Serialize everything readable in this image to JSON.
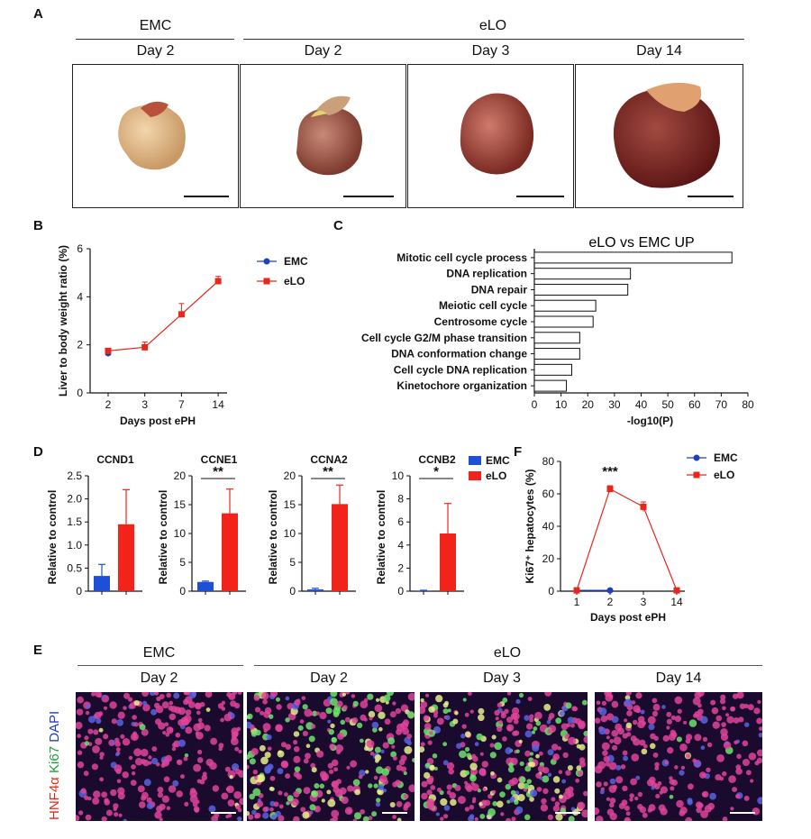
{
  "panels": {
    "A": "A",
    "B": "B",
    "C": "C",
    "D": "D",
    "E": "E",
    "F": "F"
  },
  "panelA": {
    "groups": [
      "EMC",
      "eLO"
    ],
    "columns": [
      "Day 2",
      "Day 2",
      "Day 3",
      "Day 14"
    ]
  },
  "panelE": {
    "groups": [
      "EMC",
      "eLO"
    ],
    "columns": [
      "Day 2",
      "Day 2",
      "Day 3",
      "Day 14"
    ],
    "stain": {
      "hnf": "HNF4α",
      "ki": "Ki67",
      "dapi": "DAPI"
    }
  },
  "chart_data": [
    {
      "id": "B",
      "type": "line",
      "categories": [
        "2",
        "3",
        "7",
        "14"
      ],
      "xlabel": "Days post ePH",
      "ylabel": "Liver to body weight ratio (%)",
      "ylim": [
        0,
        6
      ],
      "yticks": [
        "0",
        "2",
        "4",
        "6"
      ],
      "legend": "top-right",
      "series": [
        {
          "name": "EMC",
          "color": "#1f3fbf",
          "values": [
            1.65,
            null,
            null,
            null
          ],
          "err": [
            0.05,
            null,
            null,
            null
          ]
        },
        {
          "name": "eLO",
          "color": "#e8261b",
          "values": [
            1.75,
            1.9,
            3.27,
            4.65
          ],
          "err": [
            0.07,
            0.22,
            0.45,
            0.2
          ]
        }
      ]
    },
    {
      "id": "C",
      "type": "bar",
      "orientation": "horizontal",
      "title": "eLO vs EMC UP",
      "xlabel": "-log10(P)",
      "xlim": [
        0,
        80
      ],
      "xticks": [
        "0",
        "10",
        "20",
        "30",
        "40",
        "50",
        "60",
        "70",
        "80"
      ],
      "categories": [
        "Mitotic cell cycle process",
        "DNA replication",
        "DNA repair",
        "Meiotic cell cycle",
        "Centrosome cycle",
        "Cell cycle G2/M phase transition",
        "DNA conformation change",
        "Cell cycle DNA replication",
        "Kinetochore organization"
      ],
      "values": [
        74,
        36,
        35,
        23,
        22,
        17,
        17,
        14,
        12
      ]
    },
    {
      "id": "D1",
      "type": "bar",
      "title": "CCND1",
      "ylabel": "Relative to control",
      "ylim": [
        0,
        2.5
      ],
      "yticks": [
        "0",
        "0.5",
        "1.0",
        "1.5",
        "2.0",
        "2.5"
      ],
      "categories": [
        "EMC",
        "eLO"
      ],
      "values": [
        0.33,
        1.45
      ],
      "err": [
        0.25,
        0.75
      ],
      "colors": [
        "#1f4fd6",
        "#f2231b"
      ],
      "sig": ""
    },
    {
      "id": "D2",
      "type": "bar",
      "title": "CCNE1",
      "ylabel": "Relative to control",
      "ylim": [
        0,
        20
      ],
      "yticks": [
        "0",
        "5",
        "10",
        "15",
        "20"
      ],
      "categories": [
        "EMC",
        "eLO"
      ],
      "values": [
        1.6,
        13.5
      ],
      "err": [
        0.15,
        4.2
      ],
      "colors": [
        "#1f4fd6",
        "#f2231b"
      ],
      "sig": "**"
    },
    {
      "id": "D3",
      "type": "bar",
      "title": "CCNA2",
      "ylabel": "Relative to control",
      "ylim": [
        0,
        20
      ],
      "yticks": [
        "0",
        "5",
        "10",
        "15",
        "20"
      ],
      "categories": [
        "EMC",
        "eLO"
      ],
      "values": [
        0.3,
        15.1
      ],
      "err": [
        0.2,
        3.3
      ],
      "colors": [
        "#1f4fd6",
        "#f2231b"
      ],
      "sig": "**"
    },
    {
      "id": "D4",
      "type": "bar",
      "title": "CCNB2",
      "ylabel": "Relative to control",
      "ylim": [
        0,
        10
      ],
      "yticks": [
        "0",
        "2",
        "4",
        "6",
        "8",
        "10"
      ],
      "categories": [
        "EMC",
        "eLO"
      ],
      "values": [
        0.05,
        5.0
      ],
      "err": [
        0.03,
        2.6
      ],
      "colors": [
        "#1f4fd6",
        "#f2231b"
      ],
      "sig": "*",
      "legend": [
        {
          "name": "EMC",
          "color": "#1f4fd6"
        },
        {
          "name": "eLO",
          "color": "#f2231b"
        }
      ]
    },
    {
      "id": "F",
      "type": "line",
      "categories": [
        "1",
        "2",
        "3",
        "14"
      ],
      "xlabel": "Days post ePH",
      "ylabel": "Ki67⁺ hepatocytes (%)",
      "ylim": [
        0,
        80
      ],
      "yticks": [
        "0",
        "20",
        "40",
        "60",
        "80"
      ],
      "legend": "top-right",
      "sig": "***",
      "series": [
        {
          "name": "EMC",
          "color": "#1f3fbf",
          "values": [
            0.5,
            0.5,
            null,
            null
          ],
          "err": [
            0,
            0,
            null,
            null
          ]
        },
        {
          "name": "eLO",
          "color": "#e8261b",
          "values": [
            0.5,
            63,
            52,
            0.5
          ],
          "err": [
            0,
            2,
            3,
            0
          ]
        }
      ]
    }
  ]
}
